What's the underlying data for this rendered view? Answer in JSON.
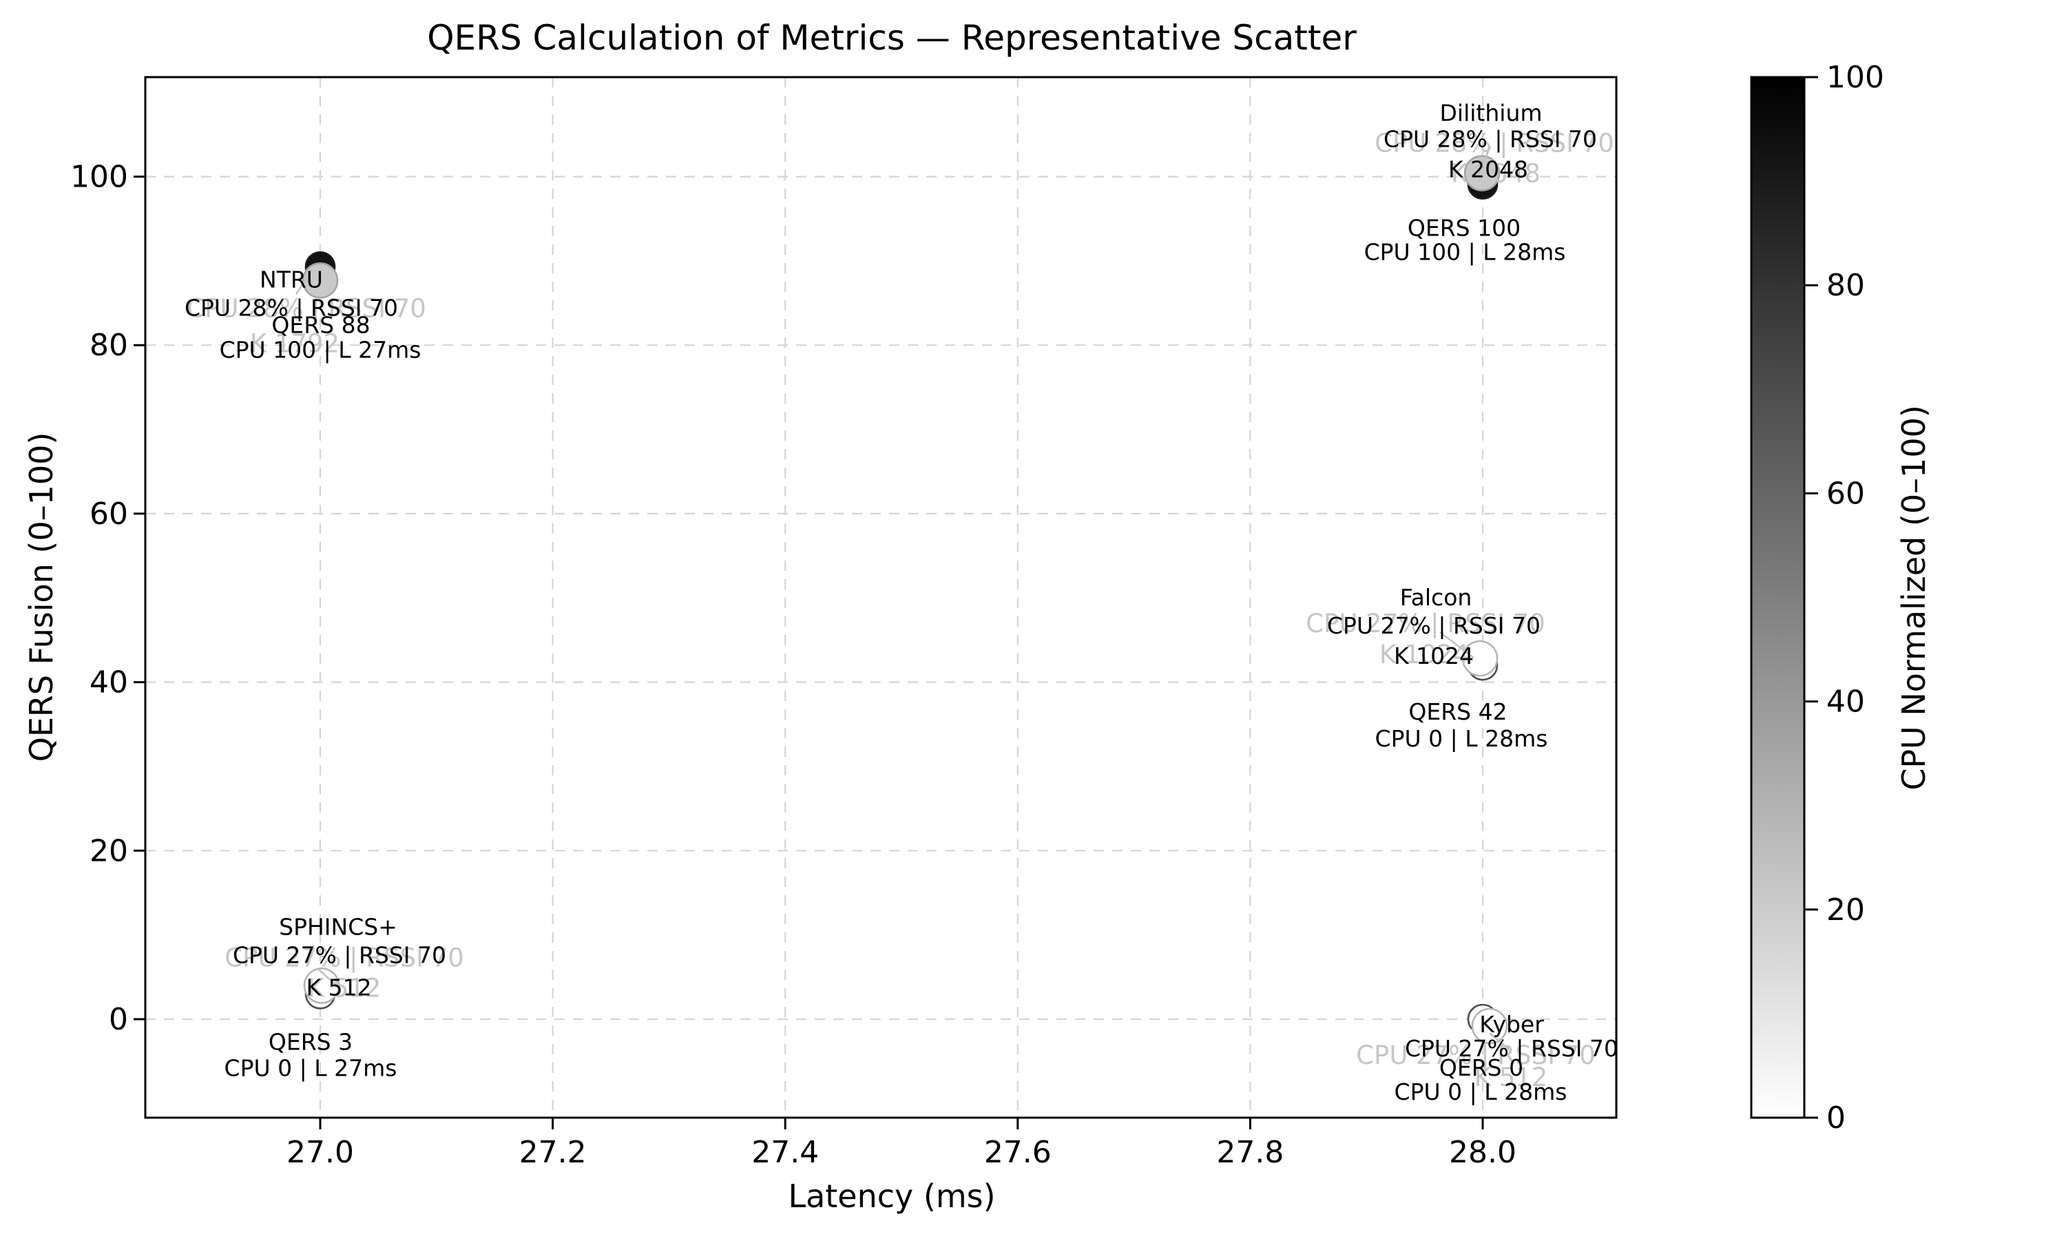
{
  "chart_data": {
    "type": "scatter",
    "title": "QERS Calculation of Metrics — Representative Scatter",
    "xlabel": "Latency (ms)",
    "ylabel": "QERS Fusion (0–100)",
    "xlim": [
      26.85,
      28.11
    ],
    "ylim": [
      -11.7,
      111.8
    ],
    "grid": true,
    "grid_color": "#d5d5d5",
    "x_ticks": [
      {
        "v": 27.0,
        "label": "27.0"
      },
      {
        "v": 27.2,
        "label": "27.2"
      },
      {
        "v": 27.4,
        "label": "27.4"
      },
      {
        "v": 27.6,
        "label": "27.6"
      },
      {
        "v": 27.8,
        "label": "27.8"
      },
      {
        "v": 28.0,
        "label": "28.0"
      }
    ],
    "y_ticks": [
      {
        "v": 0,
        "label": "0"
      },
      {
        "v": 20,
        "label": "20"
      },
      {
        "v": 40,
        "label": "40"
      },
      {
        "v": 60,
        "label": "60"
      },
      {
        "v": 80,
        "label": "80"
      },
      {
        "v": 100,
        "label": "100"
      }
    ],
    "colorbar": {
      "label": "CPU Normalized (0–100)",
      "min_color": "#ffffff",
      "max_color": "#000000",
      "ticks": [
        {
          "v": 0,
          "label": "0"
        },
        {
          "v": 20,
          "label": "20"
        },
        {
          "v": 40,
          "label": "40"
        },
        {
          "v": 60,
          "label": "60"
        },
        {
          "v": 80,
          "label": "80"
        },
        {
          "v": 100,
          "label": "100"
        }
      ]
    },
    "points": [
      {
        "name": "NTRU",
        "latency_ms": 27.0,
        "qers": 88,
        "cpu_pct": 28,
        "rssi": 70,
        "k": 1792,
        "cpu_norm": 100,
        "top_lines": [
          "NTRU",
          "CPU 28% | RSSI 70"
        ],
        "bottom_lines": [
          "QERS 88",
          "CPU 100 | L 27ms"
        ],
        "ghost_lines": [
          "CPU 28% | RSSI 70",
          "K 1792"
        ],
        "top_off": [
          [
            -42,
            2
          ],
          [
            -42,
            43
          ]
        ],
        "bottom_off": [
          [
            1,
            68
          ],
          [
            0,
            104
          ]
        ],
        "ghost_off": [
          [
            -20,
            44
          ],
          [
            -37,
            95
          ]
        ],
        "leader": [
          -35,
          24,
          -12,
          -12
        ],
        "marker_off": [
          0,
          -16
        ],
        "ghost_marker_off": [
          0,
          4
        ]
      },
      {
        "name": "Dilithium",
        "latency_ms": 28.0,
        "qers": 100,
        "cpu_pct": 28,
        "rssi": 70,
        "k": 2048,
        "cpu_norm": 100,
        "top_lines": [
          "Dilithium",
          "CPU 28% | RSSI 70",
          "K 2048"
        ],
        "bottom_lines": [
          "QERS 100",
          "CPU 100 | L 28ms"
        ],
        "ghost_lines": [
          "CPU 28% | RSSI 70",
          "K 2048"
        ],
        "top_off": [
          [
            12,
            -93
          ],
          [
            11,
            -55
          ],
          [
            8,
            -11
          ]
        ],
        "bottom_off": [
          [
            -27,
            74
          ],
          [
            -26,
            109
          ]
        ],
        "ghost_off": [
          [
            17,
            -49
          ],
          [
            19,
            -5
          ]
        ],
        "leader": [
          -5,
          -6,
          11,
          -44
        ],
        "marker_off": [
          0,
          11
        ],
        "ghost_marker_off": [
          -1,
          -5
        ]
      },
      {
        "name": "Falcon",
        "latency_ms": 28.0,
        "qers": 42,
        "cpu_pct": 27,
        "rssi": 70,
        "k": 1024,
        "cpu_norm": 0,
        "top_lines": [
          "Falcon",
          "CPU 27% | RSSI 70",
          "K 1024"
        ],
        "bottom_lines": [
          "QERS 42",
          "CPU 0 | L 28ms"
        ],
        "ghost_lines": [
          "CPU 27% | RSSI 70",
          "K 1024"
        ],
        "top_off": [
          [
            -68,
            -99
          ],
          [
            -71,
            -58
          ],
          [
            -71,
            -14
          ]
        ],
        "bottom_off": [
          [
            -36,
            67
          ],
          [
            -31,
            106
          ]
        ],
        "ghost_off": [
          [
            -83,
            -61
          ],
          [
            -85,
            -16
          ]
        ],
        "leader": [
          -62,
          -48,
          -13,
          -11
        ],
        "marker_off": [
          0,
          0
        ],
        "ghost_marker_off": [
          -4,
          -10
        ]
      },
      {
        "name": "SPHINCS+",
        "latency_ms": 27.0,
        "qers": 3,
        "cpu_pct": 27,
        "rssi": 70,
        "k": 512,
        "cpu_norm": 0,
        "top_lines": [
          "SPHINCS+",
          "CPU 27% | RSSI 70",
          "K 512"
        ],
        "bottom_lines": [
          "QERS 3",
          "CPU 0 | L 27ms"
        ],
        "ghost_lines": [
          "CPU 27% | RSSI 70",
          "K 512"
        ],
        "top_off": [
          [
            26,
            -98
          ],
          [
            28,
            -57
          ],
          [
            27,
            -10
          ]
        ],
        "bottom_off": [
          [
            -14,
            69
          ],
          [
            -14,
            107
          ]
        ],
        "ghost_off": [
          [
            35,
            -53
          ],
          [
            35,
            -9
          ]
        ],
        "leader": [
          -3,
          -36,
          23,
          -13
        ],
        "marker_off": [
          0,
          0
        ],
        "ghost_marker_off": [
          2,
          -12
        ]
      },
      {
        "name": "Kyber",
        "latency_ms": 28.0,
        "qers": 0,
        "cpu_pct": 27,
        "rssi": 70,
        "k": 512,
        "cpu_norm": 0,
        "top_lines": [
          "Kyber",
          "CPU 27% | RSSI 70"
        ],
        "bottom_lines": [
          "QERS 0",
          "CPU 0 | L 28ms"
        ],
        "ghost_lines": [
          "CPU 27% | RSSI 70",
          "K 512"
        ],
        "top_off": [
          [
            42,
            7
          ],
          [
            42,
            42
          ]
        ],
        "bottom_off": [
          [
            -2,
            70
          ],
          [
            -3,
            105
          ]
        ],
        "ghost_off": [
          [
            -10,
            52
          ],
          [
            41,
            84
          ]
        ],
        "leader": [
          10,
          20,
          38,
          44
        ],
        "marker_off": [
          0,
          0
        ],
        "ghost_marker_off": [
          10,
          10
        ]
      }
    ],
    "marker_colors": {
      "main_dark_fill": "#131313",
      "main_dark_edge": "#1a1a1a",
      "main_light_fill": "#fdfdfd",
      "main_light_edge": "#4f4f4f",
      "ghost_dark_fill": "#c9c9c9",
      "ghost_dark_edge": "#a4a4a4",
      "ghost_light_fill": "#ffffff",
      "ghost_light_edge": "#b5b5b5",
      "ghost_text": "#c6c6c6",
      "leader_line": "#c0c0c0"
    }
  }
}
